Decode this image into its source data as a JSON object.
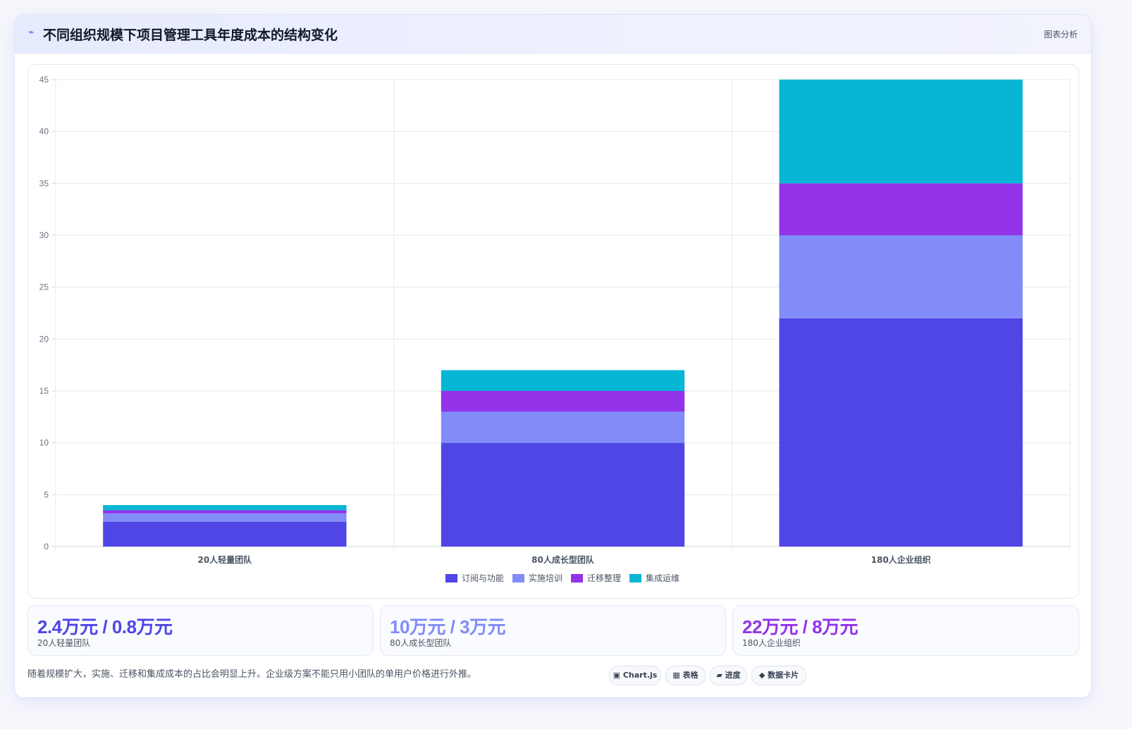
{
  "header": {
    "icon": "⌁",
    "title": "不同组织规模下项目管理工具年度成本的结构变化",
    "link_label": "图表分析"
  },
  "chart_data": {
    "type": "bar",
    "stacked": true,
    "categories": [
      "20人轻量团队",
      "80人成长型团队",
      "180人企业组织"
    ],
    "series": [
      {
        "name": "订阅与功能",
        "color": "#4f46e5",
        "values": [
          2.4,
          10,
          22
        ]
      },
      {
        "name": "实施培训",
        "color": "#818cf8",
        "values": [
          0.8,
          3,
          8
        ]
      },
      {
        "name": "迁移整理",
        "color": "#9333ea",
        "values": [
          0.3,
          2,
          5
        ]
      },
      {
        "name": "集成运维",
        "color": "#06b6d4",
        "values": [
          0.5,
          2,
          10
        ]
      }
    ],
    "ylim": [
      0,
      45
    ],
    "yticks": [
      0,
      5,
      10,
      15,
      20,
      25,
      30,
      35,
      40,
      45
    ],
    "grid": true,
    "legend_position": "bottom"
  },
  "stats": [
    {
      "value": "2.4万元 / 0.8万元",
      "label": "20人轻量团队",
      "color": "#4f46e5"
    },
    {
      "value": "10万元 / 3万元",
      "label": "80人成长型团队",
      "color": "#818cf8"
    },
    {
      "value": "22万元 / 8万元",
      "label": "180人企业组织",
      "color": "#9333ea"
    }
  ],
  "footnote": "随着规模扩大，实施、迁移和集成成本的占比会明显上升。企业级方案不能只用小团队的单用户价格进行外推。",
  "chips": [
    {
      "label": "▣ Chart.js",
      "icon": "chart-icon"
    },
    {
      "label": "▦ 表格",
      "icon": "table-icon"
    },
    {
      "label": "▰ 进度",
      "icon": "progress-icon"
    },
    {
      "label": "◆ 数据卡片",
      "icon": "card-icon"
    }
  ]
}
